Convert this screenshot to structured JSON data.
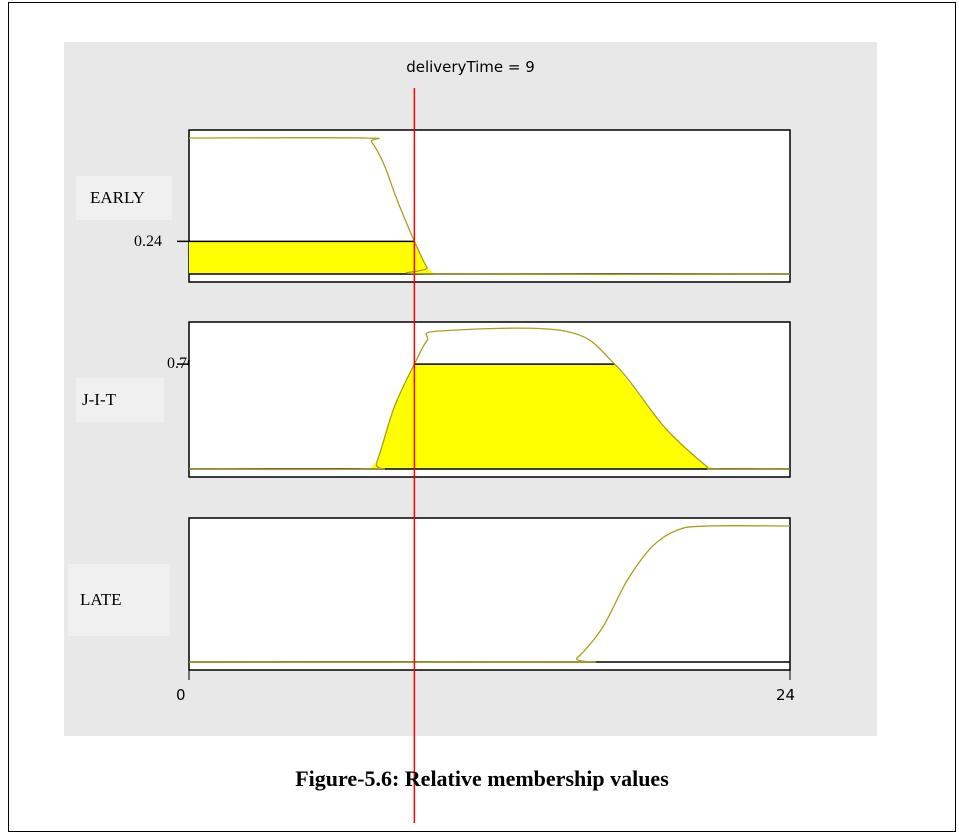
{
  "caption": "Figure-5.6: Relative membership values",
  "chart_data": {
    "type": "line",
    "title": "deliveryTime = 9",
    "variable": "deliveryTime",
    "input_value": 9,
    "xlim": [
      0,
      24
    ],
    "x_ticks": [
      "0",
      "24"
    ],
    "ylim": [
      0,
      1
    ],
    "subplots": [
      {
        "label": "EARLY",
        "membership_value": 0.24,
        "membership_value_label": "0.24",
        "curve": {
          "x": [
            0,
            7,
            7.3,
            7.8,
            8.3,
            9,
            9.5,
            9.8,
            24
          ],
          "y": [
            1,
            1,
            0.97,
            0.8,
            0.55,
            0.24,
            0.05,
            0,
            0
          ]
        }
      },
      {
        "label": "J-I-T",
        "membership_value": 0.76,
        "membership_value_label": "0.76",
        "curve": {
          "x": [
            0,
            7.2,
            7.5,
            8.2,
            9,
            9.5,
            10,
            15,
            17,
            19,
            20.6,
            21,
            24
          ],
          "y": [
            0,
            0,
            0.05,
            0.45,
            0.76,
            0.93,
            1,
            1,
            0.76,
            0.3,
            0.03,
            0,
            0
          ]
        }
      },
      {
        "label": "LATE",
        "membership_value": 0,
        "membership_value_label": "",
        "curve": {
          "x": [
            0,
            15,
            15.5,
            16.5,
            17.5,
            18.5,
            19.5,
            20.7,
            24
          ],
          "y": [
            0,
            0,
            0.03,
            0.25,
            0.6,
            0.85,
            0.97,
            1,
            1
          ]
        }
      }
    ],
    "colors": {
      "curve": "#a8a020",
      "fill": "#ffff00",
      "input_line": "#ff0000",
      "axis": "#000000"
    }
  }
}
